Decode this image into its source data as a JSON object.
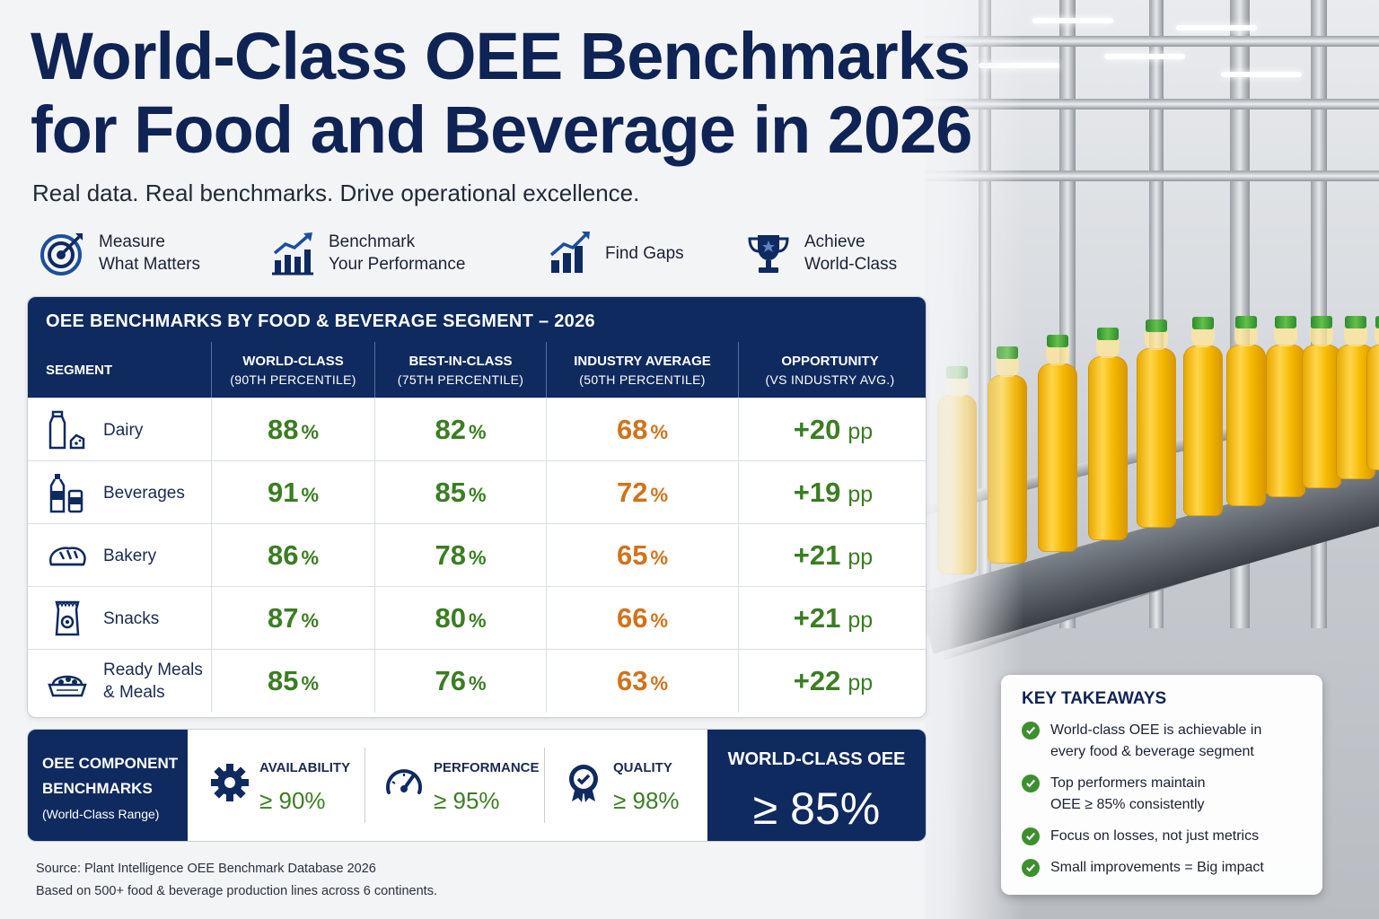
{
  "header": {
    "title_line1": "World-Class OEE Benchmarks",
    "title_line2": "for Food and Beverage in 2026",
    "subtitle": "Real data. Real benchmarks. Drive operational excellence."
  },
  "features": [
    {
      "line1": "Measure",
      "line2": "What Matters",
      "icon": "target-icon"
    },
    {
      "line1": "Benchmark",
      "line2": "Your Performance",
      "icon": "bar-chart-growth-icon"
    },
    {
      "line1": "Find Gaps",
      "line2": "",
      "icon": "trend-chart-icon"
    },
    {
      "line1": "Achieve",
      "line2": "World-Class",
      "icon": "trophy-icon"
    }
  ],
  "table": {
    "title": "OEE BENCHMARKS BY FOOD & BEVERAGE SEGMENT – 2026",
    "columns": [
      {
        "label": "SEGMENT",
        "sub": ""
      },
      {
        "label": "WORLD-CLASS",
        "sub": "(90TH PERCENTILE)"
      },
      {
        "label": "BEST-IN-CLASS",
        "sub": "(75TH PERCENTILE)"
      },
      {
        "label": "INDUSTRY AVERAGE",
        "sub": "(50TH PERCENTILE)"
      },
      {
        "label": "OPPORTUNITY",
        "sub": "(VS INDUSTRY AVG.)"
      }
    ],
    "pct_unit": "%",
    "pp_unit": "pp",
    "rows": [
      {
        "segment": "Dairy",
        "segment_line2": "",
        "icon": "milk-bottle-icon",
        "world_class": "88",
        "best_in_class": "82",
        "industry_avg": "68",
        "opportunity": "+20"
      },
      {
        "segment": "Beverages",
        "segment_line2": "",
        "icon": "beverage-bottle-icon",
        "world_class": "91",
        "best_in_class": "85",
        "industry_avg": "72",
        "opportunity": "+19"
      },
      {
        "segment": "Bakery",
        "segment_line2": "",
        "icon": "bread-icon",
        "world_class": "86",
        "best_in_class": "78",
        "industry_avg": "65",
        "opportunity": "+21"
      },
      {
        "segment": "Snacks",
        "segment_line2": "",
        "icon": "snack-bag-icon",
        "world_class": "87",
        "best_in_class": "80",
        "industry_avg": "66",
        "opportunity": "+21"
      },
      {
        "segment": "Ready Meals",
        "segment_line2": "& Meals",
        "icon": "meal-tray-icon",
        "world_class": "85",
        "best_in_class": "76",
        "industry_avg": "63",
        "opportunity": "+22"
      }
    ]
  },
  "chart_data": {
    "type": "table",
    "title": "OEE BENCHMARKS BY FOOD & BEVERAGE SEGMENT – 2026",
    "categories": [
      "Dairy",
      "Beverages",
      "Bakery",
      "Snacks",
      "Ready Meals & Meals"
    ],
    "series": [
      {
        "name": "WORLD-CLASS (90TH PERCENTILE)",
        "values": [
          88,
          91,
          86,
          87,
          85
        ]
      },
      {
        "name": "BEST-IN-CLASS (75TH PERCENTILE)",
        "values": [
          82,
          85,
          78,
          80,
          76
        ]
      },
      {
        "name": "INDUSTRY AVERAGE (50TH PERCENTILE)",
        "values": [
          68,
          72,
          65,
          66,
          63
        ]
      },
      {
        "name": "OPPORTUNITY (VS INDUSTRY AVG.)",
        "values": [
          20,
          19,
          21,
          21,
          22
        ]
      }
    ]
  },
  "components": {
    "label_line1": "OEE COMPONENT",
    "label_line2": "BENCHMARKS",
    "label_sub": "(World-Class Range)",
    "items": [
      {
        "name": "AVAILABILITY",
        "value": "≥ 90%",
        "icon": "gear-icon"
      },
      {
        "name": "PERFORMANCE",
        "value": "≥ 95%",
        "icon": "speedometer-icon"
      },
      {
        "name": "QUALITY",
        "value": "≥ 98%",
        "icon": "quality-badge-icon"
      }
    ],
    "world_class_title": "WORLD-CLASS OEE",
    "world_class_value": "≥ 85%"
  },
  "takeaways": {
    "title": "KEY TAKEAWAYS",
    "items": [
      {
        "line1": "World-class OEE is achievable in",
        "line2": "every food & beverage segment"
      },
      {
        "line1": "Top performers maintain",
        "line2": "OEE ≥ 85% consistently"
      },
      {
        "line1": "Focus on losses, not just metrics",
        "line2": ""
      },
      {
        "line1": "Small improvements = Big impact",
        "line2": ""
      }
    ]
  },
  "footer": {
    "source": "Source: Plant Intelligence OEE Benchmark Database 2026",
    "note": "Based on 500+ food & beverage production lines across 6 continents."
  },
  "colors": {
    "navy": "#0f2a5f",
    "green": "#3b7d23",
    "orange": "#d0731c",
    "juice": "#f5b800",
    "cap": "#3d9a2e"
  }
}
